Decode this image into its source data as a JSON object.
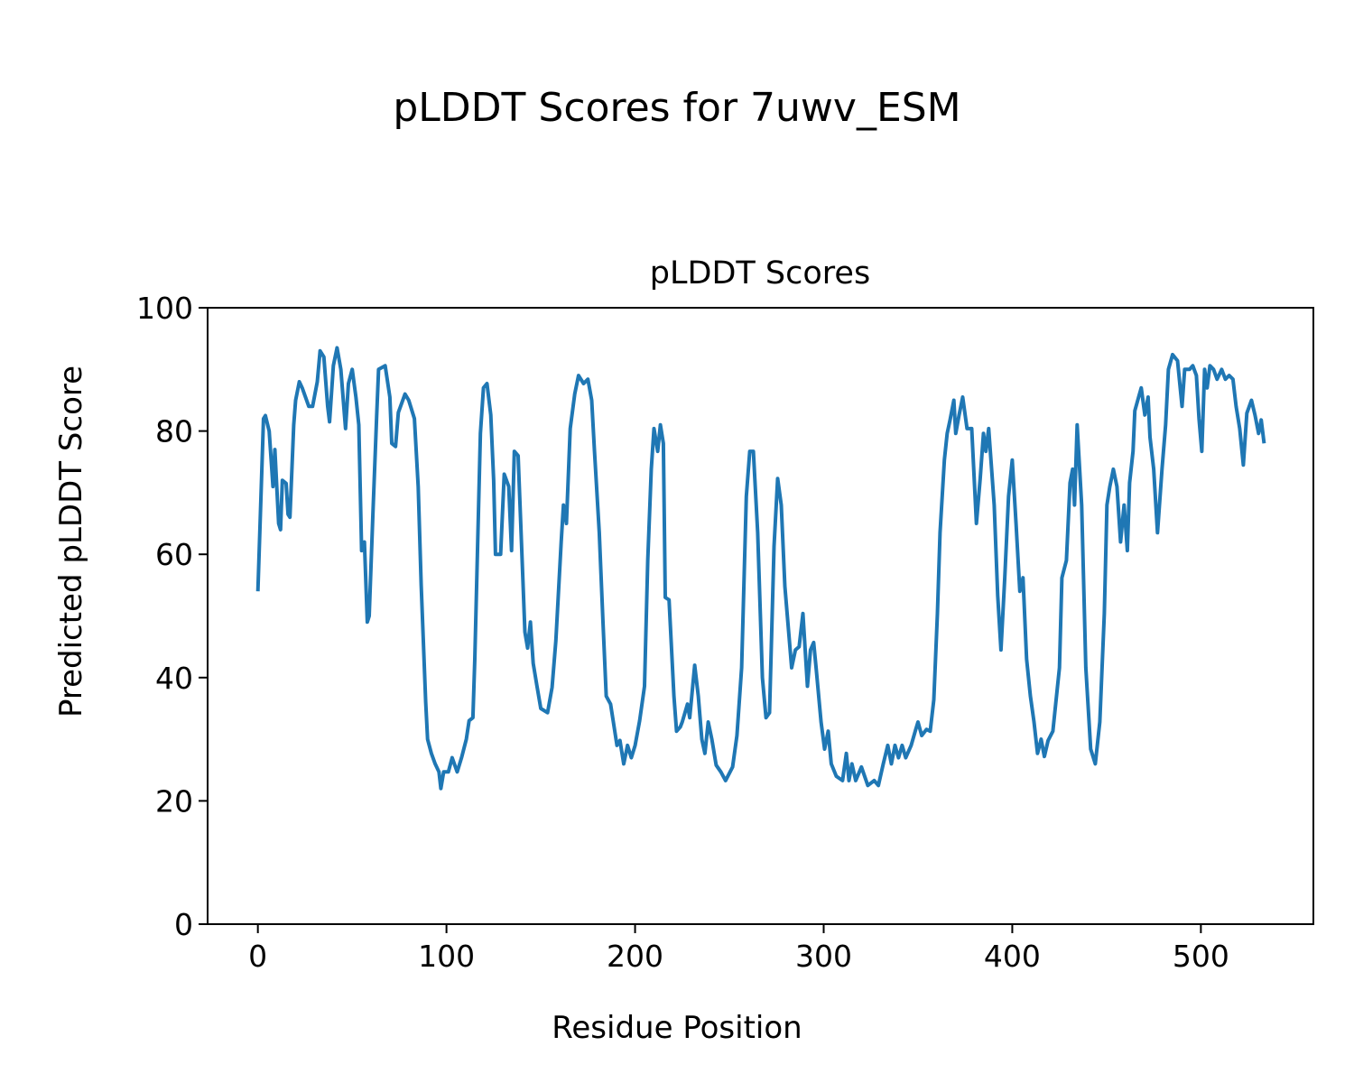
{
  "figure_title": "pLDDT Scores for 7uwv_ESM",
  "chart_data": {
    "type": "line",
    "title": "pLDDT Scores",
    "xlabel": "Residue Position",
    "ylabel": "Predicted pLDDT Score",
    "xlim": [
      -26.65,
      559.65
    ],
    "ylim": [
      0,
      100
    ],
    "xticks": [
      0,
      100,
      200,
      300,
      400,
      500
    ],
    "yticks": [
      0,
      20,
      40,
      60,
      80,
      100
    ],
    "grid": false,
    "line_color": "#1f77b4",
    "series": [
      {
        "name": "pLDDT",
        "points": [
          [
            0,
            54
          ],
          [
            3,
            82
          ],
          [
            4,
            82.5
          ],
          [
            6,
            80
          ],
          [
            8,
            71
          ],
          [
            9,
            77
          ],
          [
            11,
            65
          ],
          [
            12,
            64
          ],
          [
            13,
            72
          ],
          [
            15,
            71.5
          ],
          [
            16,
            66.5
          ],
          [
            17,
            66
          ],
          [
            19,
            81
          ],
          [
            20,
            85
          ],
          [
            22,
            88
          ],
          [
            23.5,
            87
          ],
          [
            27,
            84
          ],
          [
            29,
            84
          ],
          [
            31.5,
            88
          ],
          [
            33,
            93
          ],
          [
            35,
            92
          ],
          [
            37,
            84
          ],
          [
            38,
            81.5
          ],
          [
            40,
            90.6
          ],
          [
            42,
            93.5
          ],
          [
            44,
            90
          ],
          [
            46.5,
            80.4
          ],
          [
            48,
            87.7
          ],
          [
            50,
            90
          ],
          [
            52,
            85.5
          ],
          [
            53.5,
            81
          ],
          [
            55,
            60.6
          ],
          [
            56.5,
            62
          ],
          [
            58,
            49
          ],
          [
            59,
            50
          ],
          [
            61,
            66.5
          ],
          [
            63,
            82.5
          ],
          [
            64,
            90
          ],
          [
            67.5,
            90.6
          ],
          [
            70,
            85.5
          ],
          [
            71,
            78
          ],
          [
            73,
            77.5
          ],
          [
            74.5,
            83
          ],
          [
            78,
            86
          ],
          [
            80,
            85
          ],
          [
            83,
            82
          ],
          [
            85,
            71
          ],
          [
            86.6,
            55
          ],
          [
            89,
            36
          ],
          [
            90,
            30
          ],
          [
            92,
            27.7
          ],
          [
            94,
            26
          ],
          [
            96,
            24.7
          ],
          [
            97,
            22
          ],
          [
            98.5,
            24.7
          ],
          [
            101,
            24.7
          ],
          [
            103,
            27
          ],
          [
            105.7,
            24.7
          ],
          [
            108,
            27
          ],
          [
            110.5,
            30
          ],
          [
            112,
            33
          ],
          [
            114,
            33.5
          ],
          [
            115,
            43
          ],
          [
            118,
            79.6
          ],
          [
            119.6,
            87
          ],
          [
            121.5,
            87.7
          ],
          [
            123.5,
            82.6
          ],
          [
            125,
            72
          ],
          [
            126,
            60
          ],
          [
            128.7,
            60
          ],
          [
            130.6,
            73
          ],
          [
            133,
            71
          ],
          [
            134.5,
            60.6
          ],
          [
            136,
            76.7
          ],
          [
            138,
            76
          ],
          [
            139,
            68
          ],
          [
            141.6,
            47.4
          ],
          [
            143,
            44.8
          ],
          [
            144.5,
            49
          ],
          [
            146,
            42.3
          ],
          [
            148,
            38.6
          ],
          [
            150,
            35
          ],
          [
            153.6,
            34.3
          ],
          [
            156,
            38.4
          ],
          [
            158,
            46
          ],
          [
            160.8,
            62
          ],
          [
            162,
            68
          ],
          [
            163.6,
            65
          ],
          [
            165.6,
            80.4
          ],
          [
            168,
            86
          ],
          [
            170,
            89
          ],
          [
            172.7,
            87.7
          ],
          [
            175,
            88.4
          ],
          [
            177,
            85
          ],
          [
            178.5,
            76.7
          ],
          [
            181,
            63.5
          ],
          [
            183,
            49
          ],
          [
            184.7,
            37
          ],
          [
            187,
            35.7
          ],
          [
            188.5,
            32.8
          ],
          [
            190.4,
            29
          ],
          [
            192,
            29.8
          ],
          [
            194,
            26
          ],
          [
            196,
            29
          ],
          [
            198,
            27
          ],
          [
            200,
            29
          ],
          [
            202.4,
            33
          ],
          [
            205,
            38.6
          ],
          [
            206.7,
            59
          ],
          [
            208.6,
            73.8
          ],
          [
            210,
            80.4
          ],
          [
            212,
            76.7
          ],
          [
            213.4,
            81
          ],
          [
            215,
            78
          ],
          [
            216,
            53
          ],
          [
            218,
            52.6
          ],
          [
            220.6,
            37
          ],
          [
            222,
            31.3
          ],
          [
            224,
            32
          ],
          [
            225,
            32.8
          ],
          [
            227.8,
            35.7
          ],
          [
            229,
            33.5
          ],
          [
            231.6,
            42
          ],
          [
            233.5,
            37
          ],
          [
            235.4,
            30
          ],
          [
            237,
            27.7
          ],
          [
            238.8,
            32.8
          ],
          [
            240.7,
            30
          ],
          [
            243,
            25.8
          ],
          [
            245.5,
            24.7
          ],
          [
            248,
            23.3
          ],
          [
            251.7,
            25.5
          ],
          [
            254,
            30.6
          ],
          [
            256.5,
            41.6
          ],
          [
            259,
            69.4
          ],
          [
            260.8,
            76.7
          ],
          [
            262.7,
            76.7
          ],
          [
            265,
            63.5
          ],
          [
            267.5,
            40
          ],
          [
            269.4,
            33.5
          ],
          [
            271.3,
            34.3
          ],
          [
            273.7,
            61.3
          ],
          [
            275.6,
            72.3
          ],
          [
            277.5,
            68
          ],
          [
            279.4,
            54.8
          ],
          [
            281,
            49
          ],
          [
            283,
            41.6
          ],
          [
            285,
            44.5
          ],
          [
            287,
            45
          ],
          [
            289,
            50.4
          ],
          [
            291.4,
            38.6
          ],
          [
            293,
            44.5
          ],
          [
            294.7,
            45.7
          ],
          [
            296,
            41.6
          ],
          [
            298.6,
            32.8
          ],
          [
            300.5,
            28.4
          ],
          [
            302.4,
            31.3
          ],
          [
            304,
            26
          ],
          [
            306.7,
            24
          ],
          [
            310,
            23.3
          ],
          [
            312,
            27.7
          ],
          [
            313.4,
            23.3
          ],
          [
            315,
            26
          ],
          [
            317,
            23.3
          ],
          [
            320,
            25.5
          ],
          [
            323.4,
            22.5
          ],
          [
            326.8,
            23.3
          ],
          [
            329,
            22.5
          ],
          [
            331.6,
            26
          ],
          [
            334,
            29
          ],
          [
            335.9,
            26
          ],
          [
            337.8,
            29
          ],
          [
            339.7,
            27
          ],
          [
            341.6,
            29
          ],
          [
            343.5,
            27
          ],
          [
            346.4,
            29
          ],
          [
            348.8,
            31.6
          ],
          [
            350,
            32.8
          ],
          [
            352,
            30.6
          ],
          [
            354.5,
            31.6
          ],
          [
            356.5,
            31.3
          ],
          [
            358.4,
            36.4
          ],
          [
            360.3,
            50.4
          ],
          [
            361.7,
            63.5
          ],
          [
            364,
            75.3
          ],
          [
            365.5,
            79.6
          ],
          [
            367,
            81.8
          ],
          [
            369,
            85
          ],
          [
            370,
            79.6
          ],
          [
            371.8,
            82.6
          ],
          [
            373.7,
            85.5
          ],
          [
            376,
            80.4
          ],
          [
            378.5,
            80.4
          ],
          [
            381,
            65
          ],
          [
            383,
            72.3
          ],
          [
            384.7,
            79.6
          ],
          [
            386,
            76.7
          ],
          [
            387.5,
            80.4
          ],
          [
            390.4,
            68
          ],
          [
            392.3,
            53.3
          ],
          [
            394,
            44.5
          ],
          [
            396,
            56.2
          ],
          [
            398,
            69.4
          ],
          [
            400,
            75.3
          ],
          [
            402,
            65
          ],
          [
            404,
            54
          ],
          [
            405.7,
            56.2
          ],
          [
            407.6,
            43
          ],
          [
            409.6,
            37
          ],
          [
            411.5,
            32.8
          ],
          [
            413.4,
            27.7
          ],
          [
            415.3,
            30
          ],
          [
            417,
            27.2
          ],
          [
            419,
            29.8
          ],
          [
            421.5,
            31.3
          ],
          [
            423,
            35.7
          ],
          [
            425,
            41.6
          ],
          [
            426.3,
            56.2
          ],
          [
            428.7,
            59
          ],
          [
            430.6,
            71.6
          ],
          [
            432,
            73.8
          ],
          [
            433,
            68
          ],
          [
            434.4,
            81
          ],
          [
            436.8,
            68
          ],
          [
            439,
            41.6
          ],
          [
            441.6,
            28.4
          ],
          [
            444,
            26
          ],
          [
            446.4,
            32.8
          ],
          [
            448.8,
            50.4
          ],
          [
            450.2,
            68
          ],
          [
            451.7,
            71
          ],
          [
            453.6,
            73.8
          ],
          [
            455.5,
            71
          ],
          [
            457.4,
            62
          ],
          [
            459.3,
            68
          ],
          [
            461,
            60.6
          ],
          [
            462.2,
            71.6
          ],
          [
            464,
            76.7
          ],
          [
            465,
            83.3
          ],
          [
            467,
            85.5
          ],
          [
            468.4,
            87
          ],
          [
            470.3,
            82.6
          ],
          [
            472,
            85.5
          ],
          [
            473,
            79
          ],
          [
            475,
            73.8
          ],
          [
            477,
            63.5
          ],
          [
            479.4,
            73.8
          ],
          [
            481.3,
            81
          ],
          [
            482.8,
            90
          ],
          [
            485,
            92.4
          ],
          [
            487.6,
            91.4
          ],
          [
            490,
            84
          ],
          [
            491.4,
            90
          ],
          [
            494,
            90
          ],
          [
            495.7,
            90.6
          ],
          [
            497.6,
            89
          ],
          [
            499,
            82
          ],
          [
            500.5,
            76.7
          ],
          [
            502,
            90
          ],
          [
            503.3,
            87
          ],
          [
            504.8,
            90.6
          ],
          [
            506.7,
            90
          ],
          [
            508.6,
            88.4
          ],
          [
            511,
            90
          ],
          [
            513,
            88.4
          ],
          [
            515,
            89
          ],
          [
            517,
            88.4
          ],
          [
            518.7,
            84
          ],
          [
            520.6,
            80.4
          ],
          [
            522.5,
            74.5
          ],
          [
            524.4,
            82.9
          ],
          [
            526.8,
            85
          ],
          [
            528.7,
            82.6
          ],
          [
            530.6,
            79.6
          ],
          [
            532,
            81.8
          ],
          [
            533.5,
            78
          ]
        ]
      }
    ]
  }
}
